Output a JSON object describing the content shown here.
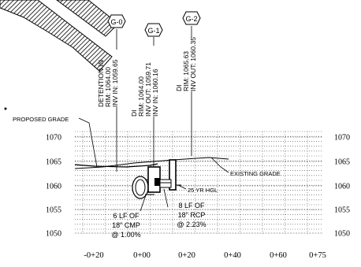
{
  "structures": [
    {
      "tag": "G-0",
      "lines": [
        "DETENTION IN",
        "RIM: 1064.00",
        "INV IN: 1059.65"
      ]
    },
    {
      "tag": "G-1",
      "lines": [
        "DI",
        "RIM: 1064.00",
        "INV OUT: 1059.71",
        "INV IN: 1060.16"
      ]
    },
    {
      "tag": "G-2",
      "lines": [
        "DI",
        "RIM: 1065.63",
        "INV OUT: 1060.35"
      ]
    }
  ],
  "callouts": {
    "proposed_grade": "PROPOSED GRADE",
    "existing_grade": "EXISTING GRADE",
    "hgl": "25 YR HGL"
  },
  "pipes": [
    {
      "lines": [
        "6 LF OF",
        "18\" CMP",
        "@ 1.00%"
      ]
    },
    {
      "lines": [
        "8 LF OF",
        "18\" RCP",
        "@ 2.23%"
      ]
    }
  ],
  "axis": {
    "y_ticks": [
      "1070",
      "1065",
      "1060",
      "1055",
      "1050"
    ],
    "x_ticks": [
      "-0+20",
      "0+00",
      "0+20",
      "0+40",
      "0+60",
      "0+75"
    ]
  },
  "colors": {
    "line": "#000000",
    "grid": "#444444",
    "background": "#ffffff"
  }
}
